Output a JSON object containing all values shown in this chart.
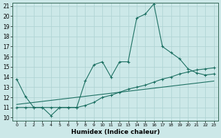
{
  "xlabel": "Humidex (Indice chaleur)",
  "background_color": "#cce8e8",
  "grid_color": "#b0d4d4",
  "line_color": "#1a6e60",
  "x_data": [
    0,
    1,
    2,
    3,
    4,
    5,
    6,
    7,
    8,
    9,
    10,
    11,
    12,
    13,
    14,
    15,
    16,
    17,
    18,
    19,
    20,
    21,
    22,
    23
  ],
  "line1": [
    13.8,
    12.1,
    11.0,
    11.0,
    10.2,
    11.0,
    11.0,
    11.0,
    13.6,
    15.2,
    15.5,
    14.0,
    15.5,
    15.5,
    19.8,
    20.2,
    21.2,
    17.0,
    16.4,
    15.8,
    14.8,
    14.4,
    14.2,
    14.3
  ],
  "line2": [
    11.0,
    11.0,
    11.0,
    11.0,
    11.0,
    11.0,
    11.0,
    11.0,
    11.2,
    11.5,
    12.0,
    12.2,
    12.5,
    12.8,
    13.0,
    13.2,
    13.5,
    13.8,
    14.0,
    14.3,
    14.5,
    14.7,
    14.8,
    14.9
  ],
  "line3": [
    11.3,
    11.4,
    11.5,
    11.6,
    11.7,
    11.8,
    11.9,
    12.0,
    12.1,
    12.2,
    12.3,
    12.4,
    12.5,
    12.6,
    12.7,
    12.8,
    12.9,
    13.0,
    13.1,
    13.2,
    13.3,
    13.4,
    13.5,
    13.6
  ],
  "ylim": [
    10,
    21
  ],
  "xlim": [
    -0.5,
    23.5
  ],
  "yticks": [
    10,
    11,
    12,
    13,
    14,
    15,
    16,
    17,
    18,
    19,
    20,
    21
  ],
  "xticks": [
    0,
    1,
    2,
    3,
    4,
    5,
    6,
    7,
    8,
    9,
    10,
    11,
    12,
    13,
    14,
    15,
    16,
    17,
    18,
    19,
    20,
    21,
    22,
    23
  ]
}
